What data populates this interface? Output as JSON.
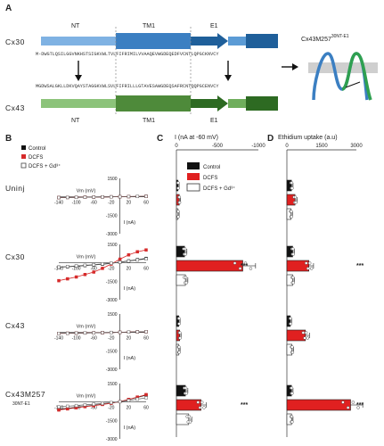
{
  "panels": {
    "a": "A",
    "b": "B",
    "c": "C",
    "d": "D"
  },
  "topology": {
    "top_label": "Cx30",
    "bottom_label": "Cx43",
    "domain_nt": "NT",
    "domain_tm1": "TM1",
    "domain_e1": "E1",
    "chimera_label": "Cx43M257",
    "chimera_sup": "30NT-E1",
    "seq_top": "M-DWGTLQSILGGVNKHSTSIGKVWLTVLFIFRIMILVVAAQEVWGDEQEDFVCNTLQPGCKNVCY",
    "seq_bottom": "MGDWSALGKLLDKVQAYSTAGGKVWLSVLFIFRILLLGTAVESAWGDEQSAFRCNTQQPGCENVCY",
    "colors": {
      "cx30": "#3b7fc2",
      "cx43": "#4e8a3a",
      "gray": "#bbbbbb"
    }
  },
  "legend_b": {
    "items": [
      "Control",
      "DCFS",
      "DCFS + Gd³⁺"
    ],
    "colors": [
      "#111111",
      "#d62a2a",
      "#444444"
    ]
  },
  "legend_c": {
    "items": [
      "Control",
      "DCFS",
      "DCFS + Gd³⁺"
    ],
    "colors": [
      "#111111",
      "#e02020",
      "#ffffff"
    ]
  },
  "iv": {
    "vm_label": "Vm (mV)",
    "ia_label": "I (nA)",
    "x_ticks": [
      "-140",
      "-100",
      "-60",
      "-20",
      "20",
      "60"
    ],
    "y_ticks": [
      "-1500",
      "-3000"
    ],
    "y_top": "1500"
  },
  "rows": [
    "Uninj",
    "Cx30",
    "Cx43",
    "Cx43M257"
  ],
  "row4_sub": "30NT-E1",
  "col_c": {
    "title": "I (nA at -60 mV)",
    "ticks": [
      "0",
      "-500",
      "-1000"
    ]
  },
  "col_d": {
    "title": "Ethidium uptake (a.u)",
    "ticks": [
      "0",
      "1500",
      "3000"
    ]
  },
  "sig": "***",
  "chart_data": [
    {
      "type": "line",
      "name": "Uninj I-V",
      "x": [
        -140,
        -120,
        -100,
        -80,
        -60,
        -40,
        -20,
        0,
        20,
        40,
        60
      ],
      "series": [
        {
          "name": "Control",
          "values": [
            -60,
            -50,
            -40,
            -30,
            -20,
            -10,
            0,
            10,
            20,
            30,
            40
          ]
        },
        {
          "name": "DCFS",
          "values": [
            -60,
            -50,
            -40,
            -30,
            -20,
            -10,
            0,
            10,
            20,
            30,
            40
          ]
        },
        {
          "name": "DCFS + Gd3+",
          "values": [
            -60,
            -50,
            -40,
            -30,
            -20,
            -10,
            0,
            10,
            20,
            30,
            40
          ]
        }
      ],
      "ylim": [
        -3000,
        1500
      ]
    },
    {
      "type": "line",
      "name": "Cx30 I-V",
      "x": [
        -140,
        -120,
        -100,
        -80,
        -60,
        -40,
        -20,
        0,
        20,
        40,
        60
      ],
      "series": [
        {
          "name": "Control",
          "values": [
            -350,
            -320,
            -270,
            -220,
            -170,
            -110,
            -40,
            60,
            160,
            260,
            360
          ]
        },
        {
          "name": "DCFS",
          "values": [
            -1450,
            -1300,
            -1150,
            -950,
            -750,
            -450,
            -100,
            300,
            650,
            900,
            1050
          ]
        },
        {
          "name": "DCFS + Gd3+",
          "values": [
            -350,
            -300,
            -250,
            -200,
            -150,
            -90,
            -30,
            50,
            140,
            230,
            320
          ]
        }
      ],
      "ylim": [
        -3000,
        1500
      ]
    },
    {
      "type": "line",
      "name": "Cx43 I-V",
      "x": [
        -140,
        -120,
        -100,
        -80,
        -60,
        -40,
        -20,
        0,
        20,
        40,
        60
      ],
      "series": [
        {
          "name": "Control",
          "values": [
            -80,
            -70,
            -55,
            -45,
            -35,
            -20,
            -5,
            10,
            30,
            45,
            60
          ]
        },
        {
          "name": "DCFS",
          "values": [
            -80,
            -70,
            -55,
            -45,
            -35,
            -20,
            -5,
            10,
            30,
            45,
            60
          ]
        },
        {
          "name": "DCFS + Gd3+",
          "values": [
            -80,
            -70,
            -55,
            -45,
            -35,
            -20,
            -5,
            10,
            30,
            45,
            60
          ]
        }
      ],
      "ylim": [
        -3000,
        1500
      ]
    },
    {
      "type": "line",
      "name": "Cx43M257 I-V",
      "x": [
        -140,
        -120,
        -100,
        -80,
        -60,
        -40,
        -20,
        0,
        20,
        40,
        60
      ],
      "series": [
        {
          "name": "Control",
          "values": [
            -600,
            -520,
            -430,
            -350,
            -270,
            -180,
            -90,
            30,
            200,
            380,
            560
          ]
        },
        {
          "name": "DCFS",
          "values": [
            -650,
            -560,
            -470,
            -380,
            -300,
            -200,
            -100,
            30,
            210,
            400,
            600
          ]
        },
        {
          "name": "DCFS + Gd3+",
          "values": [
            -400,
            -350,
            -290,
            -230,
            -180,
            -120,
            -50,
            20,
            120,
            230,
            340
          ]
        }
      ],
      "ylim": [
        -3000,
        1500
      ]
    },
    {
      "type": "bar",
      "name": "Current at -60 mV",
      "categories": [
        "Uninj",
        "Cx30",
        "Cx43",
        "Cx43M257"
      ],
      "series": [
        {
          "name": "Control",
          "values": [
            -20,
            -100,
            -30,
            -110
          ]
        },
        {
          "name": "DCFS",
          "values": [
            -35,
            -810,
            -40,
            -300
          ]
        },
        {
          "name": "DCFS + Gd3+",
          "values": [
            -20,
            -110,
            -30,
            -150
          ]
        }
      ],
      "ylim": [
        -1000,
        0
      ]
    },
    {
      "type": "bar",
      "name": "Ethidium uptake",
      "categories": [
        "Uninj",
        "Cx30",
        "Cx43",
        "Cx43M257"
      ],
      "series": [
        {
          "name": "Control",
          "values": [
            200,
            250,
            150,
            200
          ]
        },
        {
          "name": "DCFS",
          "values": [
            350,
            950,
            800,
            2750
          ]
        },
        {
          "name": "DCFS + Gd3+",
          "values": [
            180,
            250,
            220,
            200
          ]
        }
      ],
      "ylim": [
        0,
        3000
      ]
    }
  ]
}
